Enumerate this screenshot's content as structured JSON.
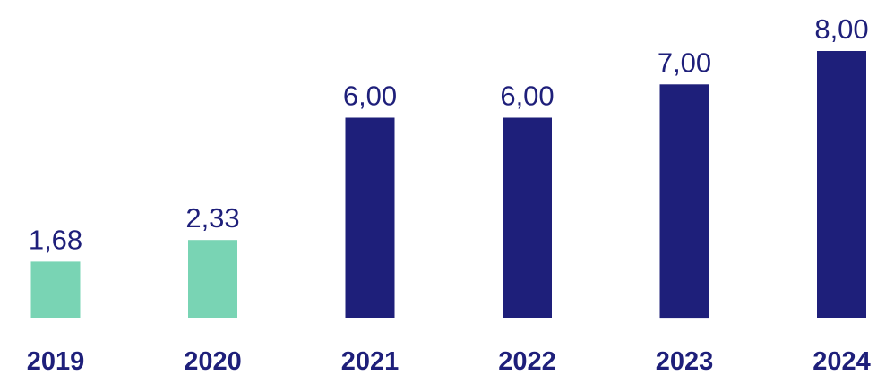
{
  "chart_data": {
    "type": "bar",
    "title": "",
    "xlabel": "",
    "ylabel": "",
    "categories": [
      "2019",
      "2020",
      "2021",
      "2022",
      "2023",
      "2024"
    ],
    "values": [
      1.68,
      2.33,
      6.0,
      6.0,
      7.0,
      8.0
    ],
    "value_labels": [
      "1,68",
      "2,33",
      "6,00",
      "6,00",
      "7,00",
      "8,00"
    ],
    "bar_colors": [
      "#79d4b4",
      "#79d4b4",
      "#1e1f7a",
      "#1e1f7a",
      "#1e1f7a",
      "#1e1f7a"
    ],
    "label_color": "#1e1f7a",
    "ylim": [
      0,
      8
    ],
    "grid": false,
    "legend": "none"
  }
}
